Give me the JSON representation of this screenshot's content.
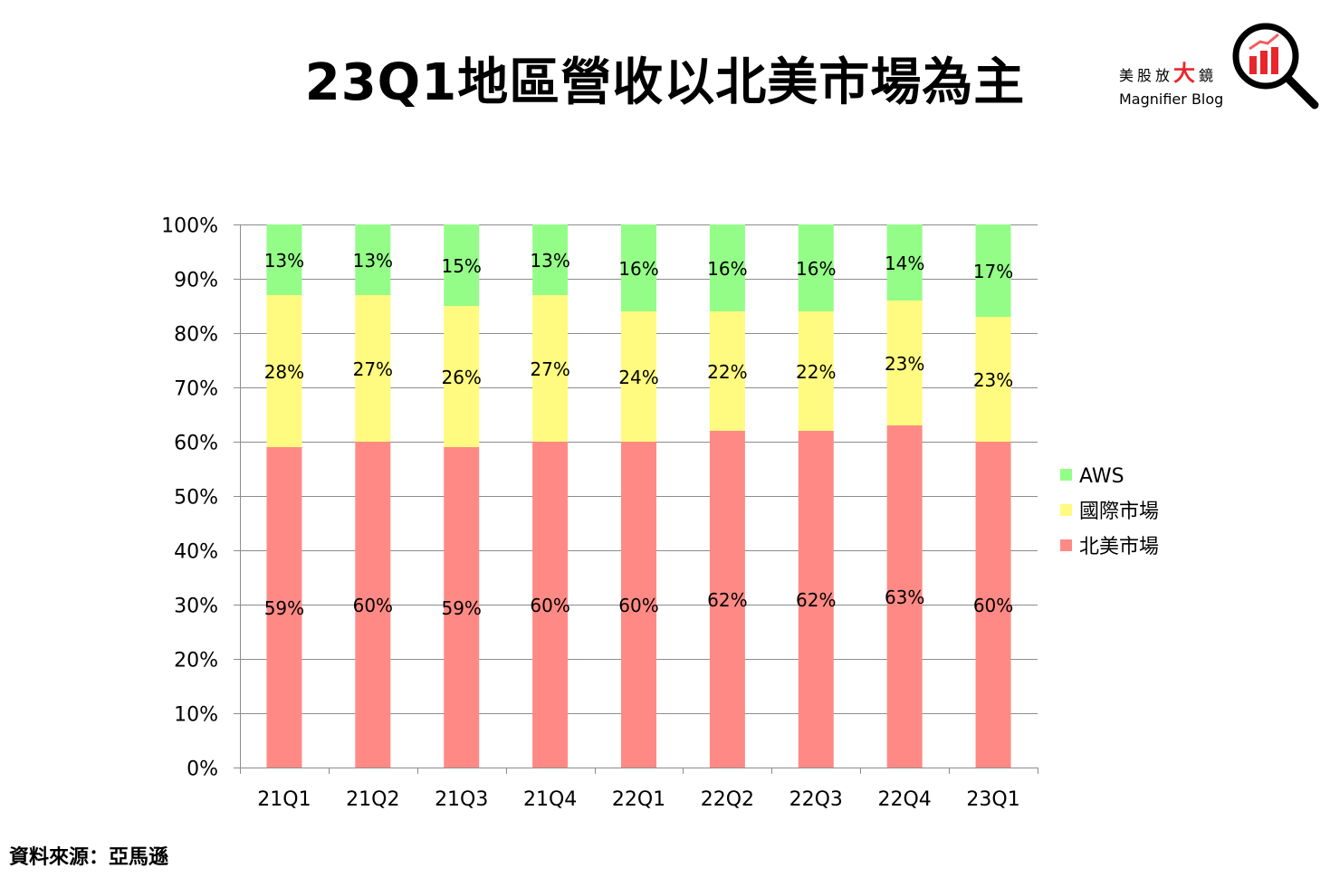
{
  "title": "23Q1地區營收以北美市場為主",
  "source": "資料來源：亞馬遜",
  "logo": {
    "cn_prefix": "美股放",
    "cn_big": "大",
    "cn_suffix": "鏡",
    "en": "Magnifier Blog"
  },
  "chart_data": {
    "type": "bar",
    "stacked": true,
    "title": "23Q1地區營收以北美市場為主",
    "xlabel": "",
    "ylabel": "",
    "ylim": [
      0,
      100
    ],
    "yticks": [
      "0%",
      "10%",
      "20%",
      "30%",
      "40%",
      "50%",
      "60%",
      "70%",
      "80%",
      "90%",
      "100%"
    ],
    "grid": true,
    "legend_position": "right",
    "categories": [
      "21Q1",
      "21Q2",
      "21Q3",
      "21Q4",
      "22Q1",
      "22Q2",
      "22Q3",
      "22Q4",
      "23Q1"
    ],
    "series": [
      {
        "name": "北美市場",
        "color": "#FF8A85",
        "values": [
          59,
          60,
          59,
          60,
          60,
          62,
          62,
          63,
          60
        ]
      },
      {
        "name": "國際市場",
        "color": "#FFFA80",
        "values": [
          28,
          27,
          26,
          27,
          24,
          22,
          22,
          23,
          23
        ]
      },
      {
        "name": "AWS",
        "color": "#94FD88",
        "values": [
          13,
          13,
          15,
          13,
          16,
          16,
          16,
          14,
          17
        ]
      }
    ]
  }
}
